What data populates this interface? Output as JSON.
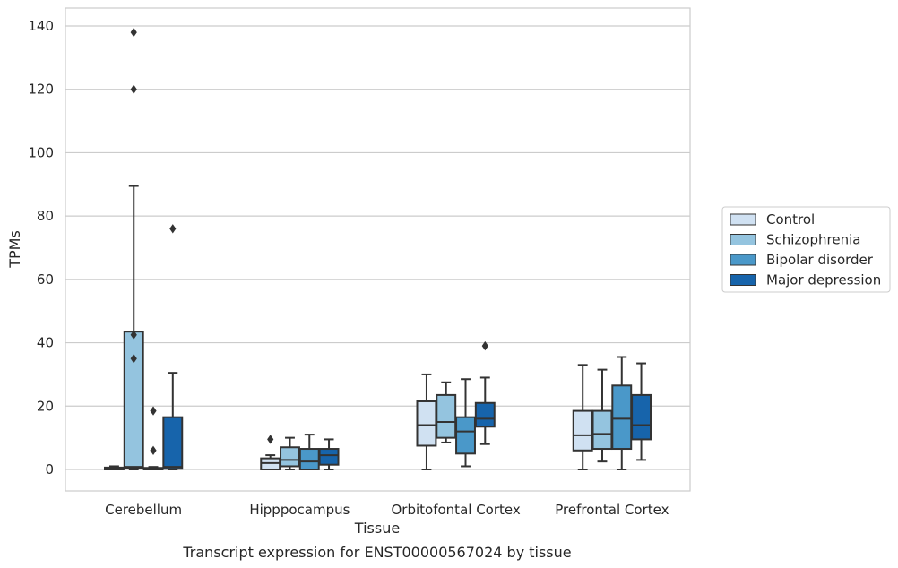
{
  "caption": "Transcript expression for ENST00000567024 by tissue",
  "colors": {
    "Control": "#d0e1f2",
    "Schizophrenia": "#94c4df",
    "Bipolar disorder": "#4a98c9",
    "Major depression": "#1764ab",
    "edge": "#333333",
    "grid": "#cccccc",
    "frame": "#cccccc"
  },
  "chart_data": {
    "type": "boxplot",
    "title": "",
    "xlabel": "Tissue",
    "ylabel": "TPMs",
    "ylim": [
      -6.5,
      145
    ],
    "yticks": [
      0,
      20,
      40,
      60,
      80,
      100,
      120,
      140
    ],
    "grid": "horizontal",
    "legend_position": "right",
    "categories": [
      "Cerebellum",
      "Hipppocampus",
      "Orbitofontal Cortex",
      "Prefrontal Cortex"
    ],
    "series": [
      {
        "name": "Control",
        "boxes": [
          {
            "whisker_low": 0,
            "q1": 0,
            "median": 0.3,
            "q3": 0.6,
            "whisker_high": 1,
            "outliers": []
          },
          {
            "whisker_low": 0,
            "q1": 0,
            "median": 2,
            "q3": 3.5,
            "whisker_high": 4.5,
            "outliers": [
              9.5
            ]
          },
          {
            "whisker_low": 0,
            "q1": 7.5,
            "median": 14,
            "q3": 21.5,
            "whisker_high": 30,
            "outliers": []
          },
          {
            "whisker_low": 0,
            "q1": 6,
            "median": 10.8,
            "q3": 18.5,
            "whisker_high": 33,
            "outliers": []
          }
        ]
      },
      {
        "name": "Schizophrenia",
        "boxes": [
          {
            "whisker_low": 0,
            "q1": 0.5,
            "median": 0.8,
            "q3": 43.5,
            "whisker_high": 89.5,
            "outliers": [
              42.5,
              35,
              120,
              138
            ]
          },
          {
            "whisker_low": 0,
            "q1": 1,
            "median": 3,
            "q3": 7,
            "whisker_high": 10,
            "outliers": []
          },
          {
            "whisker_low": 8.5,
            "q1": 10,
            "median": 15,
            "q3": 23.5,
            "whisker_high": 27.5,
            "outliers": []
          },
          {
            "whisker_low": 2.5,
            "q1": 6.5,
            "median": 11.2,
            "q3": 18.5,
            "whisker_high": 31.5,
            "outliers": []
          }
        ]
      },
      {
        "name": "Bipolar disorder",
        "boxes": [
          {
            "whisker_low": 0,
            "q1": 0,
            "median": 0.2,
            "q3": 0.5,
            "whisker_high": 0.8,
            "outliers": [
              18.5,
              6
            ]
          },
          {
            "whisker_low": 0,
            "q1": 0,
            "median": 2.5,
            "q3": 6.5,
            "whisker_high": 11,
            "outliers": []
          },
          {
            "whisker_low": 1,
            "q1": 5,
            "median": 12,
            "q3": 16.5,
            "whisker_high": 28.5,
            "outliers": []
          },
          {
            "whisker_low": 0,
            "q1": 6.5,
            "median": 16,
            "q3": 26.5,
            "whisker_high": 35.5,
            "outliers": []
          }
        ]
      },
      {
        "name": "Major depression",
        "boxes": [
          {
            "whisker_low": 0,
            "q1": 0.2,
            "median": 0.8,
            "q3": 16.5,
            "whisker_high": 30.5,
            "outliers": [
              76
            ]
          },
          {
            "whisker_low": 0,
            "q1": 1.5,
            "median": 4.5,
            "q3": 6.5,
            "whisker_high": 9.5,
            "outliers": []
          },
          {
            "whisker_low": 8,
            "q1": 13.5,
            "median": 16,
            "q3": 21,
            "whisker_high": 29,
            "outliers": [
              39
            ]
          },
          {
            "whisker_low": 3,
            "q1": 9.5,
            "median": 14,
            "q3": 23.5,
            "whisker_high": 33.5,
            "outliers": []
          }
        ]
      }
    ]
  }
}
